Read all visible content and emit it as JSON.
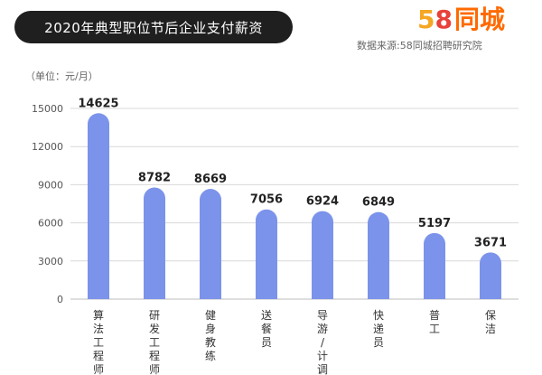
{
  "header": {
    "title": "2020年典型职位节后企业支付薪资",
    "logo_digit_5": "5",
    "logo_digit_8": "8",
    "logo_text": "同城",
    "source": "数据来源:58同城招聘研究院"
  },
  "colors": {
    "bar": "#7b93ea",
    "title_bg": "#1f1f1f",
    "logo_5": "#f5a623",
    "logo_8": "#e8413a",
    "logo_text": "#ff6a00"
  },
  "chart_data": {
    "type": "bar",
    "title": "2020年典型职位节后企业支付薪资",
    "unit_label": "（单位：元/月）",
    "categories": [
      "算法工程师",
      "研发工程师",
      "健身教练",
      "送餐员",
      "导游 / 计调",
      "快递员",
      "普工",
      "保洁"
    ],
    "values": [
      14625,
      8782,
      8669,
      7056,
      6924,
      6849,
      5197,
      3671
    ],
    "y_ticks": [
      "0",
      "3000",
      "6000",
      "9000",
      "12000",
      "15000"
    ],
    "ylim": [
      0,
      15000
    ],
    "grid": true
  }
}
